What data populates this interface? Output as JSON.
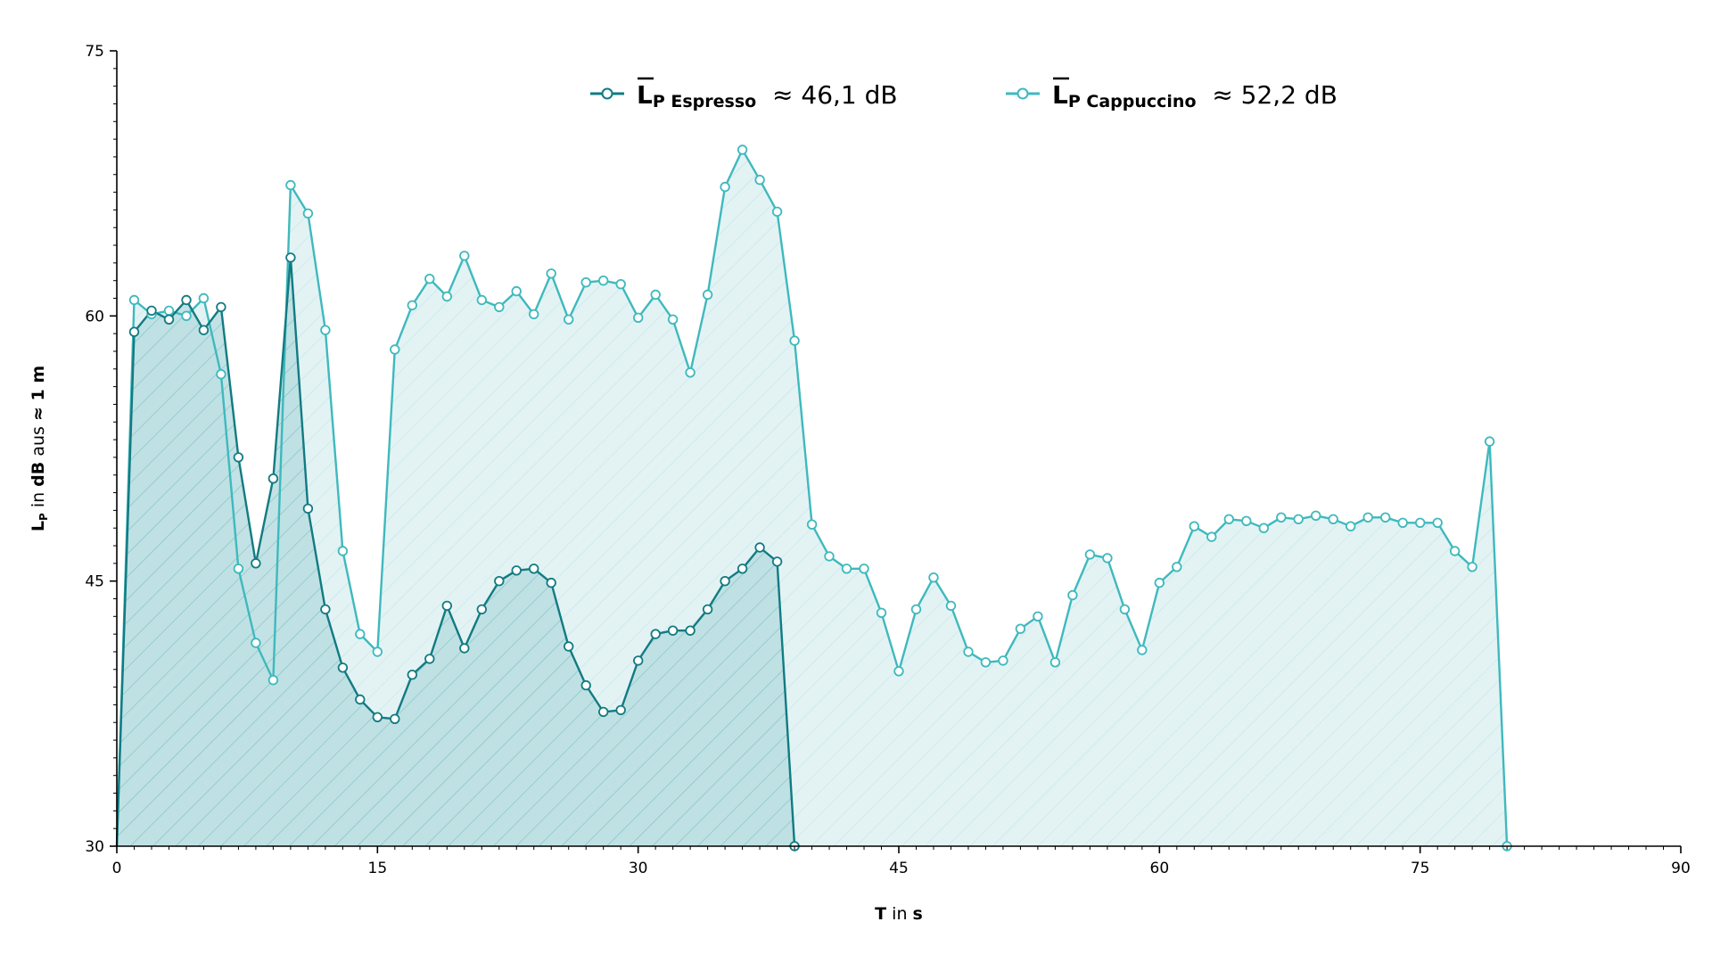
{
  "chart_data": {
    "type": "area",
    "xlabel": {
      "bold": "T",
      "rest": " in ",
      "unit": "s"
    },
    "ylabel": {
      "main": "L",
      "sub": "P",
      "rest1": " in ",
      "unit": "dB",
      "rest2": " aus ",
      "dist": "≈ 1 m"
    },
    "xlim": [
      0,
      90
    ],
    "ylim": [
      30,
      75
    ],
    "xticks": [
      "0",
      "15",
      "30",
      "45",
      "60",
      "75",
      "90"
    ],
    "yticks": [
      "30",
      "45",
      "60",
      "75"
    ],
    "legend_position": "top-center",
    "grid": false,
    "series": [
      {
        "legend_main": "L",
        "legend_sub": "P Espresso",
        "legend_value": "≈ 46,1 dB",
        "color": "#127b82",
        "fill": "#b9dde0",
        "x": [
          0,
          1,
          2,
          3,
          4,
          5,
          6,
          7,
          8,
          9,
          10,
          11,
          12,
          13,
          14,
          15,
          16,
          17,
          18,
          19,
          20,
          21,
          22,
          23,
          24,
          25,
          26,
          27,
          28,
          29,
          30,
          31,
          32,
          33,
          34,
          35,
          36,
          37,
          38,
          39
        ],
        "y": [
          30,
          59.1,
          60.3,
          59.8,
          60.9,
          59.2,
          60.5,
          52.0,
          46.0,
          50.8,
          63.3,
          49.1,
          43.4,
          40.1,
          38.3,
          37.3,
          37.2,
          39.7,
          40.6,
          43.6,
          41.2,
          43.4,
          45.0,
          45.6,
          45.7,
          44.9,
          41.3,
          39.1,
          37.6,
          37.7,
          40.5,
          42.0,
          42.2,
          42.2,
          43.4,
          45.0,
          45.7,
          46.9,
          46.1,
          30
        ]
      },
      {
        "legend_main": "L",
        "legend_sub": "P Cappuccino",
        "legend_value": "≈ 52,2 dB",
        "color": "#3fb9bd",
        "fill": "#e3f3f4",
        "x": [
          0,
          1,
          2,
          3,
          4,
          5,
          6,
          7,
          8,
          9,
          10,
          11,
          12,
          13,
          14,
          15,
          16,
          17,
          18,
          19,
          20,
          21,
          22,
          23,
          24,
          25,
          26,
          27,
          28,
          29,
          30,
          31,
          32,
          33,
          34,
          35,
          36,
          37,
          38,
          39,
          40,
          41,
          42,
          43,
          44,
          45,
          46,
          47,
          48,
          49,
          50,
          51,
          52,
          53,
          54,
          55,
          56,
          57,
          58,
          59,
          60,
          61,
          62,
          63,
          64,
          65,
          66,
          67,
          68,
          69,
          70,
          71,
          72,
          73,
          74,
          75,
          76,
          77,
          78,
          79,
          80
        ],
        "y": [
          30,
          60.9,
          60.1,
          60.3,
          60.0,
          61.0,
          56.7,
          45.7,
          41.5,
          39.4,
          67.4,
          65.8,
          59.2,
          46.7,
          42.0,
          41.0,
          58.1,
          60.6,
          62.1,
          61.1,
          63.4,
          60.9,
          60.5,
          61.4,
          60.1,
          62.4,
          59.8,
          61.9,
          62.0,
          61.8,
          59.9,
          61.2,
          59.8,
          56.8,
          61.2,
          67.3,
          69.4,
          67.7,
          65.9,
          58.6,
          48.2,
          46.4,
          45.7,
          45.7,
          43.2,
          39.9,
          43.4,
          45.2,
          43.6,
          41.0,
          40.4,
          40.5,
          42.3,
          43.0,
          40.4,
          44.2,
          46.5,
          46.3,
          43.4,
          41.1,
          44.9,
          45.8,
          48.1,
          47.5,
          48.5,
          48.4,
          48.0,
          48.6,
          48.5,
          48.7,
          48.5,
          48.1,
          48.6,
          48.6,
          48.3,
          48.3,
          48.3,
          46.7,
          45.8,
          52.9,
          30
        ]
      }
    ]
  }
}
